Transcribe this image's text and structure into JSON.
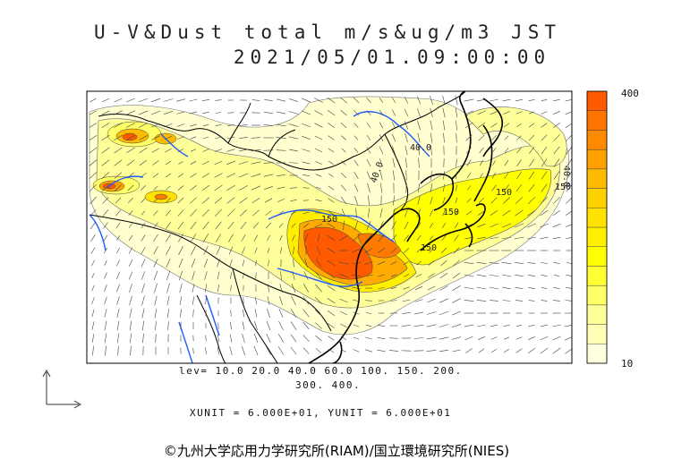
{
  "title": {
    "line1": "U-V&Dust total m/s&ug/m3 JST",
    "line2": "2021/05/01.09:00:00"
  },
  "levels": {
    "line1": "lev= 10.0 20.0 40.0 60.0 100. 150. 200.",
    "line2": "300. 400."
  },
  "units_text": "XUNIT = 6.000E+01, YUNIT = 6.000E+01",
  "credit": "©九州大学応用力学研究所(RIAM)/国立環境研究所(NIES)",
  "colorbar": {
    "max_label": "400",
    "min_label": "10",
    "colors": [
      "#ffffe0",
      "#ffffb8",
      "#ffff9a",
      "#ffff66",
      "#ffff33",
      "#ffff00",
      "#fff000",
      "#ffe200",
      "#ffd100",
      "#ffbb00",
      "#ffa000",
      "#ff8a00",
      "#ff7400",
      "#ff5a00"
    ]
  },
  "contour_labels": [
    "150",
    "40.0",
    "150",
    "150",
    "40.0",
    "150",
    "150",
    "40.0"
  ],
  "palette": {
    "land_outline": "#000000",
    "rivers": "#1e5bff",
    "frame": "#000000",
    "vectors": "#444444"
  }
}
